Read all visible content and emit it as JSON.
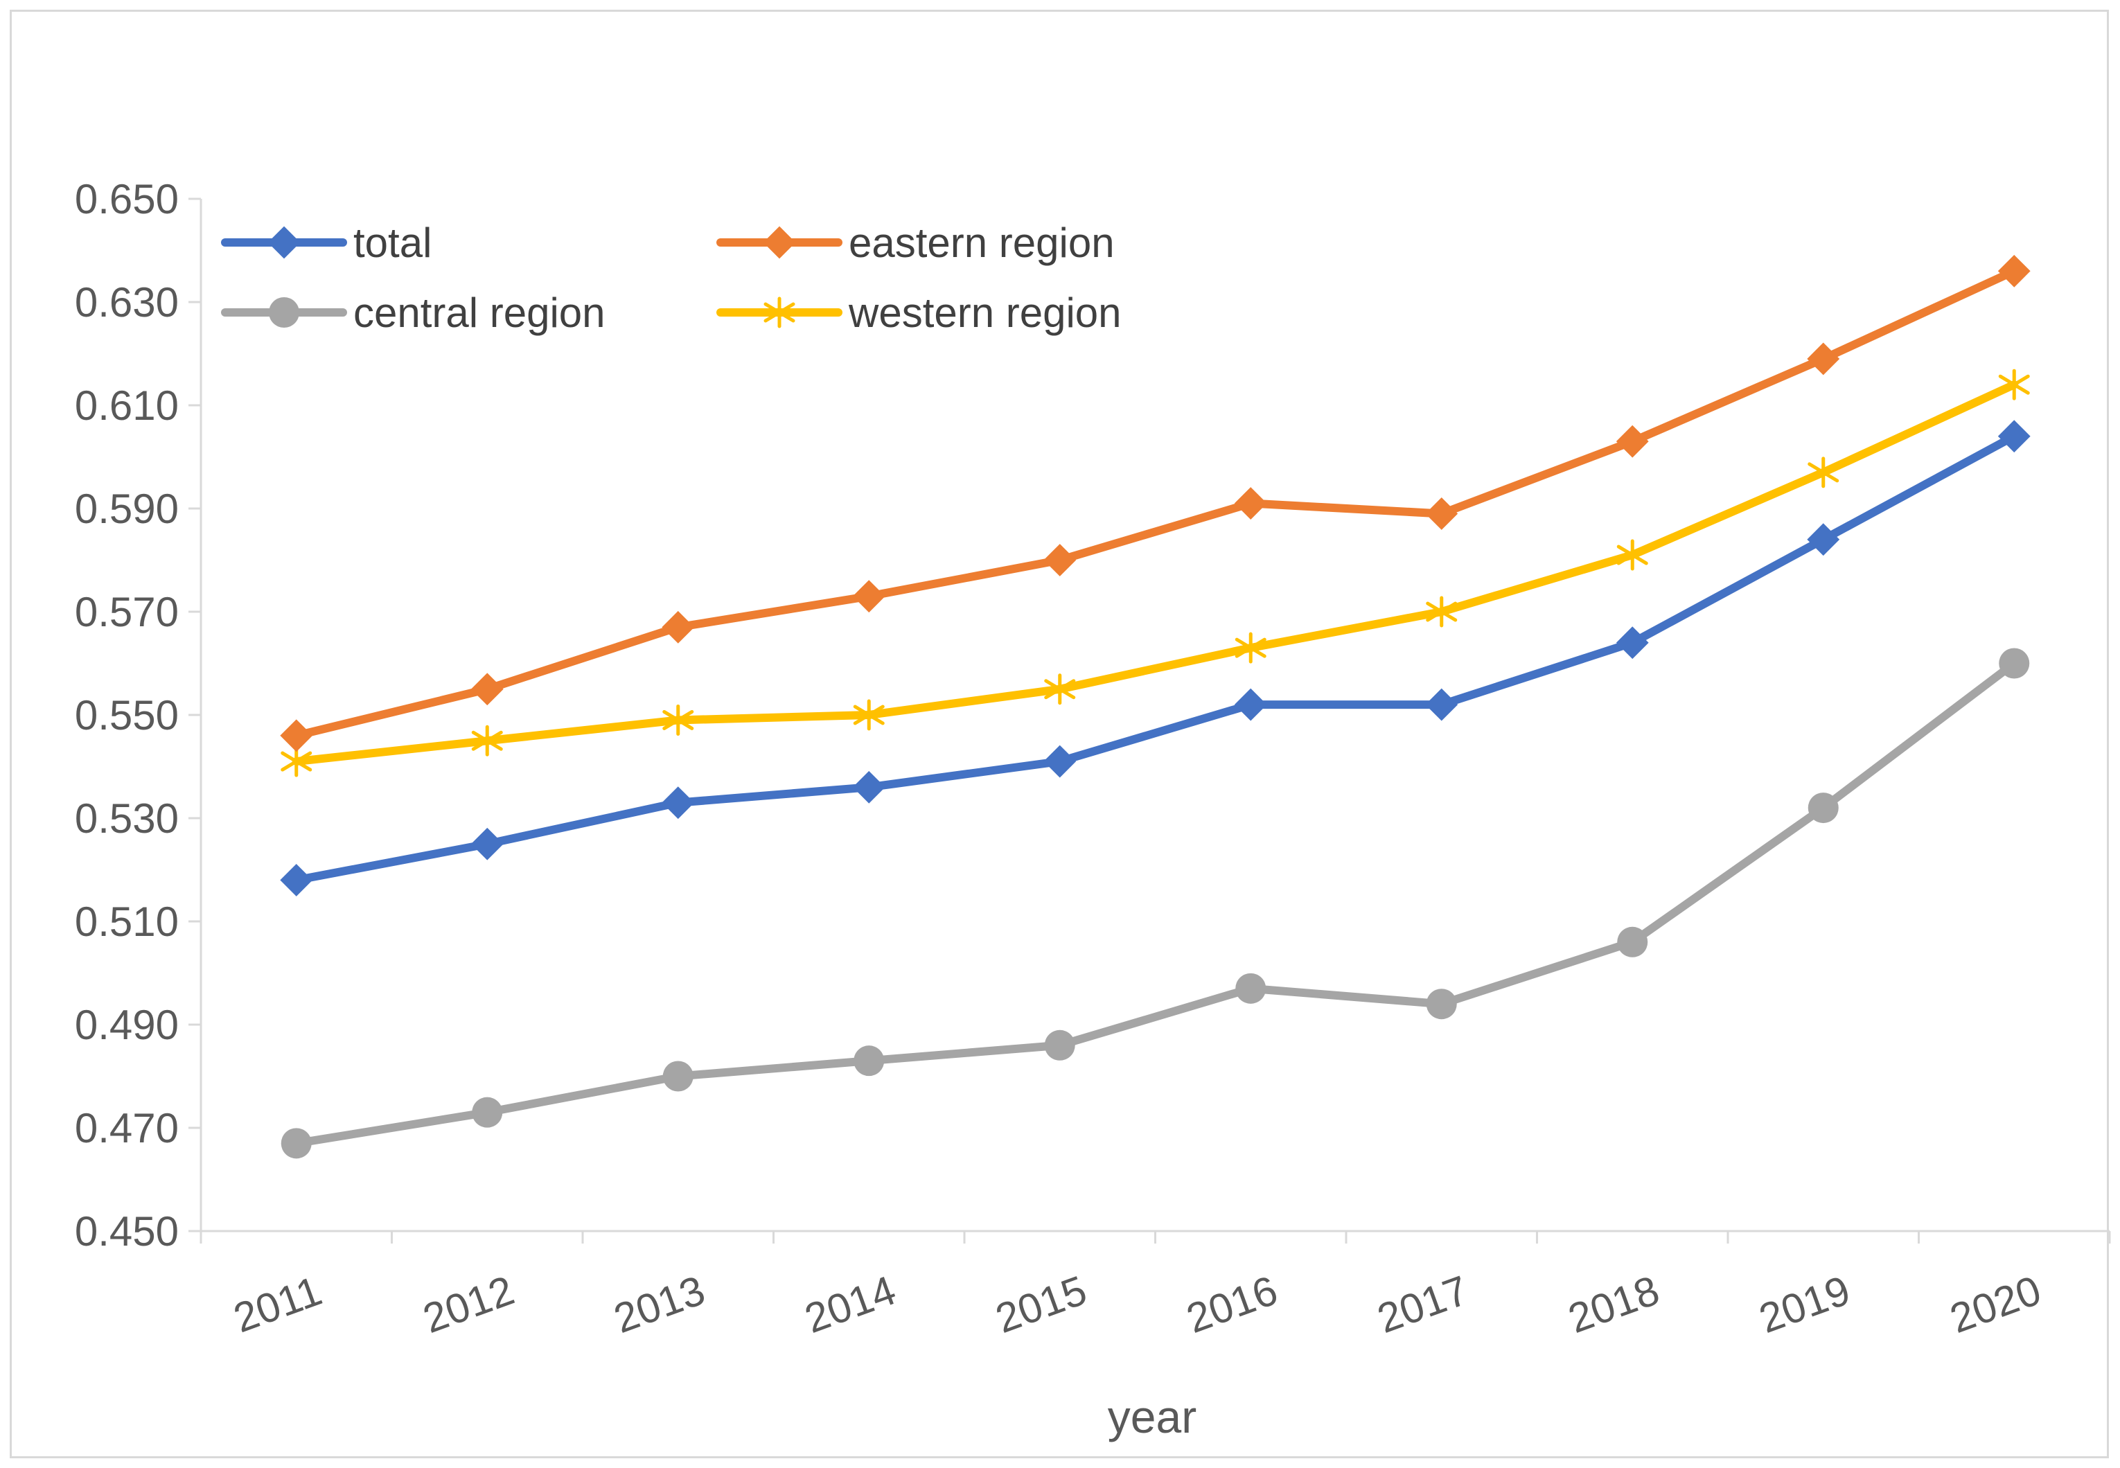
{
  "chart_data": {
    "type": "line",
    "title": "",
    "xlabel": "year",
    "ylabel": "",
    "categories": [
      "2011",
      "2012",
      "2013",
      "2014",
      "2015",
      "2016",
      "2017",
      "2018",
      "2019",
      "2020"
    ],
    "ylim": [
      0.45,
      0.65
    ],
    "yticks": [
      "0.450",
      "0.470",
      "0.490",
      "0.510",
      "0.530",
      "0.550",
      "0.570",
      "0.590",
      "0.610",
      "0.630",
      "0.650"
    ],
    "grid": false,
    "legend_position": "top-left",
    "series": [
      {
        "name": "total",
        "color": "#4472c4",
        "marker": "diamond",
        "values": [
          0.518,
          0.525,
          0.533,
          0.536,
          0.541,
          0.552,
          0.552,
          0.564,
          0.584,
          0.604
        ]
      },
      {
        "name": "eastern region",
        "color": "#ed7d31",
        "marker": "diamond",
        "values": [
          0.546,
          0.555,
          0.567,
          0.573,
          0.58,
          0.591,
          0.589,
          0.603,
          0.619,
          0.636
        ]
      },
      {
        "name": "central region",
        "color": "#a5a5a5",
        "marker": "circle",
        "values": [
          0.467,
          0.473,
          0.48,
          0.483,
          0.486,
          0.497,
          0.494,
          0.506,
          0.532,
          0.56
        ]
      },
      {
        "name": "western region",
        "color": "#ffc000",
        "marker": "star",
        "values": [
          0.541,
          0.545,
          0.549,
          0.55,
          0.555,
          0.563,
          0.57,
          0.581,
          0.597,
          0.614
        ]
      }
    ]
  }
}
